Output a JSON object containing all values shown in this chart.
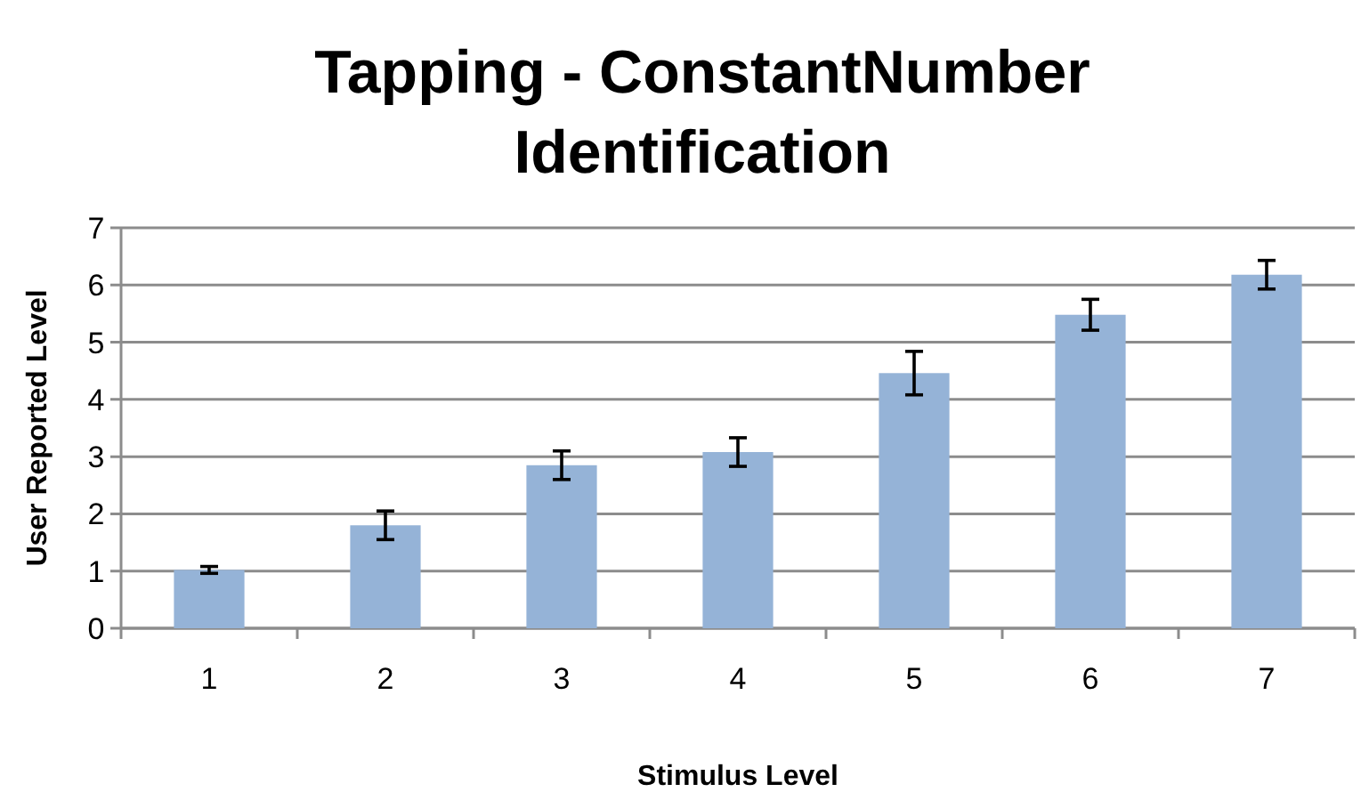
{
  "chart_data": {
    "type": "bar",
    "title": "Tapping - ConstantNumber Identification",
    "xlabel": "Stimulus Level",
    "ylabel": "User Reported Level",
    "categories": [
      "1",
      "2",
      "3",
      "4",
      "5",
      "6",
      "7"
    ],
    "values": [
      1.02,
      1.8,
      2.85,
      3.08,
      4.46,
      5.48,
      6.18
    ],
    "errors": [
      0.06,
      0.25,
      0.25,
      0.25,
      0.38,
      0.27,
      0.25
    ],
    "color": "#95b3d7",
    "ylim": [
      0,
      7
    ],
    "yticks": [
      0,
      1,
      2,
      3,
      4,
      5,
      6,
      7
    ],
    "grid": "y"
  }
}
